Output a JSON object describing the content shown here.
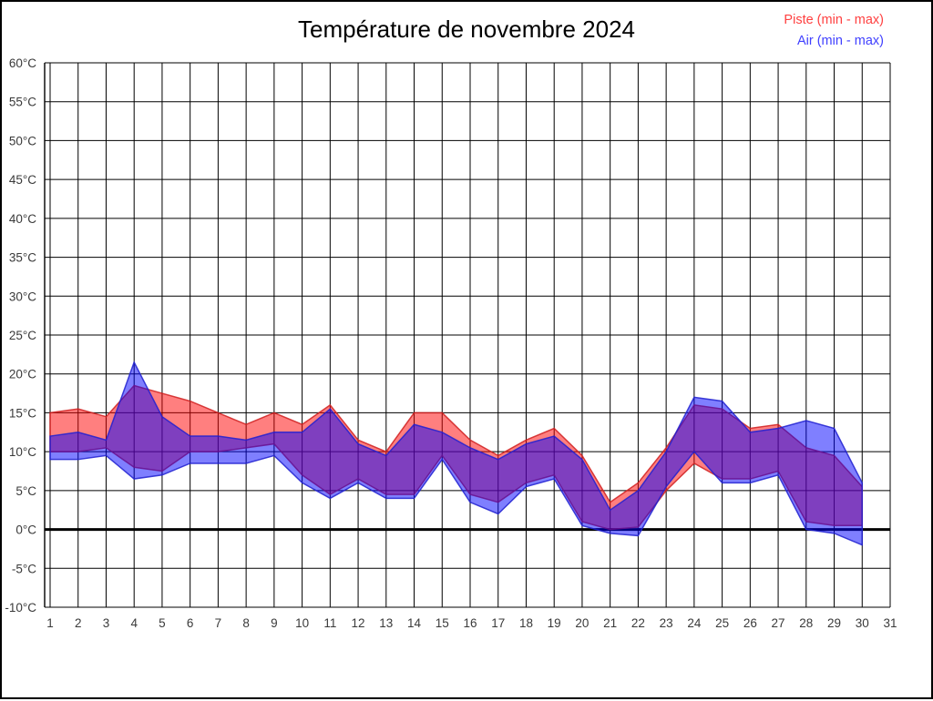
{
  "legend": {
    "position": "top-right",
    "items": [
      {
        "label": "Piste (min - max)",
        "color": "#ff4040"
      },
      {
        "label": "Air (min - max)",
        "color": "#4040ff"
      }
    ]
  },
  "chart_data": {
    "type": "area",
    "variant": "min-max-bands",
    "title": "Température de novembre 2024",
    "xlabel": "",
    "ylabel": "",
    "xlim": [
      1,
      31
    ],
    "ylim": [
      -10,
      60
    ],
    "grid": true,
    "zero_line_bold": true,
    "legend_position": "top-right",
    "y_tick_suffix": "°C",
    "y_ticks": [
      60,
      55,
      50,
      45,
      40,
      35,
      30,
      25,
      20,
      15,
      10,
      5,
      0,
      -5,
      -10
    ],
    "x_ticks": [
      1,
      2,
      3,
      4,
      5,
      6,
      7,
      8,
      9,
      10,
      11,
      12,
      13,
      14,
      15,
      16,
      17,
      18,
      19,
      20,
      21,
      22,
      23,
      24,
      25,
      26,
      27,
      28,
      29,
      30,
      31
    ],
    "days": [
      1,
      2,
      3,
      4,
      5,
      6,
      7,
      8,
      9,
      10,
      11,
      12,
      13,
      14,
      15,
      16,
      17,
      18,
      19,
      20,
      21,
      22,
      23,
      24,
      25,
      26,
      27,
      28,
      29,
      30
    ],
    "series": [
      {
        "key": "piste",
        "name": "Piste (min - max)",
        "fill": "rgba(255,0,0,0.5)",
        "stroke": "#d02020",
        "min": [
          10,
          10,
          10.5,
          8,
          7.5,
          10,
          10,
          10.5,
          11,
          7,
          4.5,
          6.5,
          4.5,
          4.5,
          9.5,
          4.5,
          3.5,
          6,
          7,
          1,
          0,
          0.3,
          5,
          8.5,
          6.5,
          6.5,
          7.5,
          1,
          0.5,
          0.5
        ],
        "max": [
          15,
          15.5,
          14.5,
          18.5,
          17.5,
          16.5,
          15,
          13.5,
          15,
          13.5,
          16,
          11.5,
          10,
          15,
          15,
          11.5,
          9.5,
          11.5,
          13,
          9.5,
          3.5,
          6,
          10.5,
          16,
          15.5,
          13,
          13.5,
          10.5,
          9.5,
          5.5
        ]
      },
      {
        "key": "air",
        "name": "Air (min - max)",
        "fill": "rgba(0,0,255,0.5)",
        "stroke": "#2020d0",
        "min": [
          9,
          9,
          9.5,
          6.5,
          7,
          8.5,
          8.5,
          8.5,
          9.5,
          6,
          4,
          6,
          4,
          4,
          9,
          3.5,
          2,
          5.5,
          6.5,
          0.5,
          -0.5,
          -0.8,
          5.5,
          10,
          6,
          6,
          7,
          0,
          -0.5,
          -2
        ],
        "max": [
          12,
          12.5,
          11.5,
          21.5,
          14.5,
          12,
          12,
          11.5,
          12.5,
          12.5,
          15.5,
          11,
          9.5,
          13.5,
          12.5,
          10.5,
          9,
          11,
          12,
          9,
          2.5,
          5,
          10,
          17,
          16.5,
          12.5,
          13,
          14,
          13,
          6
        ]
      }
    ]
  }
}
